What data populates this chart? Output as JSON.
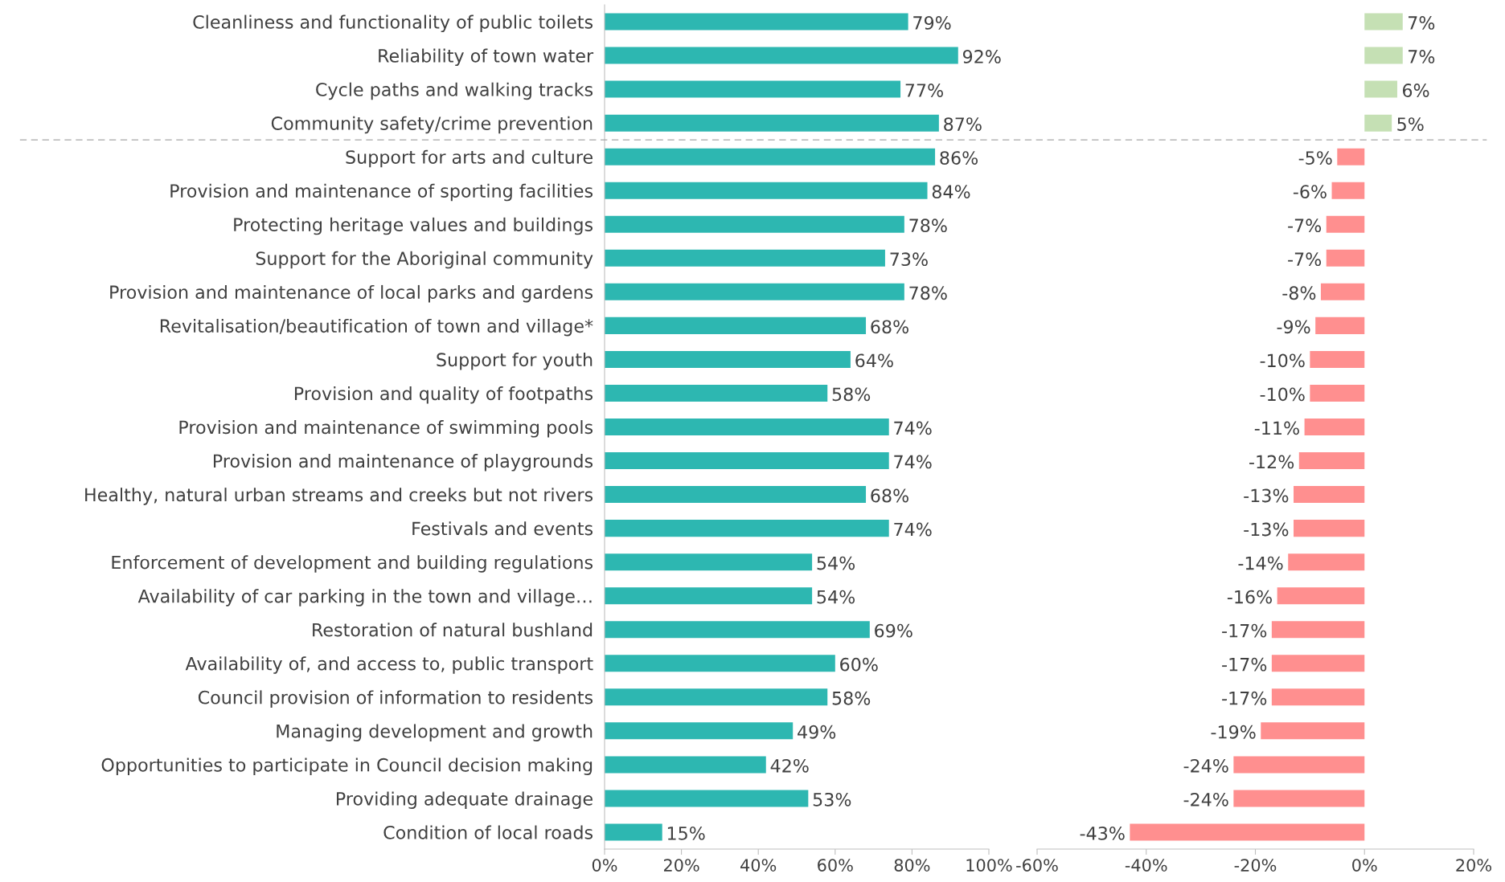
{
  "chart_data": [
    {
      "type": "bar",
      "orientation": "horizontal",
      "categories": [
        "Cleanliness and functionality of public toilets",
        "Reliability of town water",
        "Cycle paths and walking tracks",
        "Community safety/crime prevention",
        "Support for arts and culture",
        "Provision and maintenance of sporting facilities",
        "Protecting heritage values and buildings",
        "Support for the Aboriginal community",
        "Provision and maintenance of local parks and gardens",
        "Revitalisation/beautification of town and village*",
        "Support for youth",
        "Provision and quality of footpaths",
        "Provision and maintenance of swimming pools",
        "Provision and maintenance of playgrounds",
        "Healthy, natural urban streams and creeks but not rivers",
        "Festivals and events",
        "Enforcement of development and building regulations",
        "Availability of car parking in the town and village…",
        "Restoration of natural bushland",
        "Availability of, and access to, public transport",
        "Council provision of information to residents",
        "Managing development and growth",
        "Opportunities to participate in Council decision making",
        "Providing adequate drainage",
        "Condition of local roads"
      ],
      "values": [
        79,
        92,
        77,
        87,
        86,
        84,
        78,
        73,
        78,
        68,
        64,
        58,
        74,
        74,
        68,
        74,
        54,
        54,
        69,
        60,
        58,
        49,
        42,
        53,
        15
      ],
      "value_labels": [
        "79%",
        "92%",
        "77%",
        "87%",
        "86%",
        "84%",
        "78%",
        "73%",
        "78%",
        "68%",
        "64%",
        "58%",
        "74%",
        "74%",
        "68%",
        "74%",
        "54%",
        "54%",
        "69%",
        "60%",
        "58%",
        "49%",
        "42%",
        "53%",
        "15%"
      ],
      "color": "#2db7b1",
      "xlim": [
        0,
        100
      ],
      "xticks": [
        {
          "value": 0,
          "label": "0%"
        },
        {
          "value": 20,
          "label": "20%"
        },
        {
          "value": 40,
          "label": "40%"
        },
        {
          "value": 60,
          "label": "60%"
        },
        {
          "value": 80,
          "label": "80%"
        },
        {
          "value": 100,
          "label": "100%"
        }
      ],
      "grid": false
    },
    {
      "type": "bar",
      "orientation": "horizontal",
      "categories": [
        null,
        null,
        null,
        null,
        null,
        null,
        null,
        null,
        null,
        null,
        null,
        null,
        null,
        null,
        null,
        null,
        null,
        null,
        null,
        null,
        null,
        null,
        null,
        null,
        null
      ],
      "values": [
        7,
        7,
        6,
        5,
        -5,
        -6,
        -7,
        -7,
        -8,
        -9,
        -10,
        -10,
        -11,
        -12,
        -13,
        -13,
        -14,
        -16,
        -17,
        -17,
        -17,
        -19,
        -24,
        -24,
        -43
      ],
      "value_labels": [
        "7%",
        "7%",
        "6%",
        "5%",
        "-5%",
        "-6%",
        "-7%",
        "-7%",
        "-8%",
        "-9%",
        "-10%",
        "-10%",
        "-11%",
        "-12%",
        "-13%",
        "-13%",
        "-14%",
        "-16%",
        "-17%",
        "-17%",
        "-17%",
        "-19%",
        "-24%",
        "-24%",
        "-43%"
      ],
      "colors": [
        "#c5e0b4",
        "#c5e0b4",
        "#c5e0b4",
        "#c5e0b4",
        "#ff8f8f",
        "#ff8f8f",
        "#ff8f8f",
        "#ff8f8f",
        "#ff8f8f",
        "#ff8f8f",
        "#ff8f8f",
        "#ff8f8f",
        "#ff8f8f",
        "#ff8f8f",
        "#ff8f8f",
        "#ff8f8f",
        "#ff8f8f",
        "#ff8f8f",
        "#ff8f8f",
        "#ff8f8f",
        "#ff8f8f",
        "#ff8f8f",
        "#ff8f8f",
        "#ff8f8f",
        "#ff8f8f"
      ],
      "xlim": [
        -60,
        20
      ],
      "xticks": [
        {
          "value": -60,
          "label": "-60%"
        },
        {
          "value": -40,
          "label": "-40%"
        },
        {
          "value": -20,
          "label": "-20%"
        },
        {
          "value": 0,
          "label": "0%"
        },
        {
          "value": 20,
          "label": "20%"
        }
      ],
      "tick_labels": "x",
      "grid": false
    }
  ]
}
